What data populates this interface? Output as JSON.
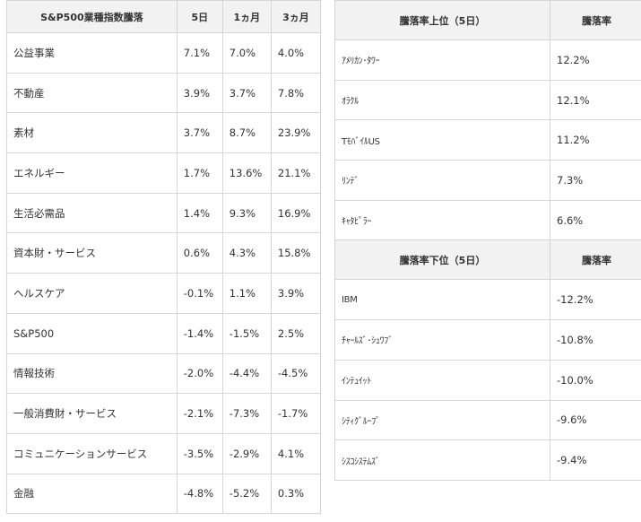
{
  "sector": {
    "headers": [
      "S&P500業種指数騰落",
      "5日",
      "1ヵ月",
      "3ヵ月"
    ],
    "rows": [
      {
        "name": "公益事業",
        "d5": "7.1%",
        "m1": "7.0%",
        "m3": "4.0%"
      },
      {
        "name": "不動産",
        "d5": "3.9%",
        "m1": "3.7%",
        "m3": "7.8%"
      },
      {
        "name": "素材",
        "d5": "3.7%",
        "m1": "8.7%",
        "m3": "23.9%"
      },
      {
        "name": "エネルギー",
        "d5": "1.7%",
        "m1": "13.6%",
        "m3": "21.1%"
      },
      {
        "name": "生活必需品",
        "d5": "1.4%",
        "m1": "9.3%",
        "m3": "16.9%"
      },
      {
        "name": "資本財・サービス",
        "d5": "0.6%",
        "m1": "4.3%",
        "m3": "15.8%"
      },
      {
        "name": "ヘルスケア",
        "d5": "-0.1%",
        "m1": "1.1%",
        "m3": "3.9%"
      },
      {
        "name": "S&P500",
        "d5": "-1.4%",
        "m1": "-1.5%",
        "m3": "2.5%"
      },
      {
        "name": "情報技術",
        "d5": "-2.0%",
        "m1": "-4.4%",
        "m3": "-4.5%"
      },
      {
        "name": "一般消費財・サービス",
        "d5": "-2.1%",
        "m1": "-7.3%",
        "m3": "-1.7%"
      },
      {
        "name": "コミュニケーションサービス",
        "d5": "-3.5%",
        "m1": "-2.9%",
        "m3": "4.1%"
      },
      {
        "name": "金融",
        "d5": "-4.8%",
        "m1": "-5.2%",
        "m3": "0.3%"
      }
    ]
  },
  "top": {
    "headers": [
      "騰落率上位（5日）",
      "騰落率"
    ],
    "rows": [
      {
        "name": "ｱﾒﾘｶﾝ･ﾀﾜｰ",
        "rate": "12.2%"
      },
      {
        "name": "ｵﾗｸﾙ",
        "rate": "12.1%"
      },
      {
        "name": "TﾓﾊﾞｲﾙUS",
        "rate": "11.2%"
      },
      {
        "name": "ﾘﾝﾃﾞ",
        "rate": "7.3%"
      },
      {
        "name": "ｷｬﾀﾋﾟﾗｰ",
        "rate": "6.6%"
      }
    ]
  },
  "bottom": {
    "headers": [
      "騰落率下位（5日）",
      "騰落率"
    ],
    "rows": [
      {
        "name": "IBM",
        "rate": "-12.2%"
      },
      {
        "name": "ﾁｬｰﾙｽﾞ･ｼｭﾜﾌﾞ",
        "rate": "-10.8%"
      },
      {
        "name": "ｲﾝﾃｭｲｯﾄ",
        "rate": "-10.0%"
      },
      {
        "name": "ｼﾃｨｸﾞﾙｰﾌﾟ",
        "rate": "-9.6%"
      },
      {
        "name": "ｼｽｺｼｽﾃﾑｽﾞ",
        "rate": "-9.4%"
      }
    ]
  }
}
